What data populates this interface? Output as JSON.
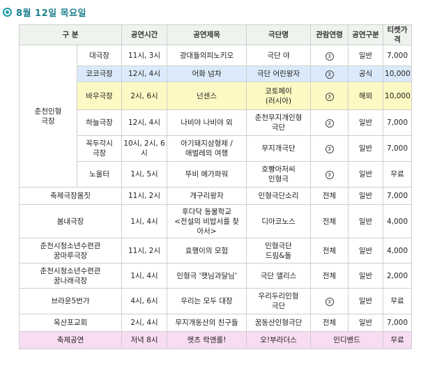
{
  "page": {
    "title": "8월  12일  목요일"
  },
  "table": {
    "headers": [
      "구 분",
      "공연시간",
      "공연제목",
      "극단명",
      "관람연령",
      "공연구분",
      "티켓가격"
    ],
    "group_label": "춘천인형\n극장",
    "age_mark": "3",
    "rows": [
      {
        "venue": "대극장",
        "time": "11시, 3시",
        "show": "광대들의피노키오",
        "troupe": "극단 야",
        "age": "③",
        "type": "일반",
        "price": "7,000"
      },
      {
        "venue": "코코극장",
        "time": "12시, 4시",
        "show": "어화 넘차",
        "troupe": "극단 어린왕자",
        "age": "③",
        "type": "공식",
        "price": "10,000"
      },
      {
        "venue": "바우극장",
        "time": "2시, 6시",
        "show": "넌센스",
        "troupe": "코토페이\n(러시아)",
        "age": "③",
        "type": "해외",
        "price": "10,000"
      },
      {
        "venue": "하늘극장",
        "time": "12시, 4시",
        "show": "나비야 나비야 외",
        "troupe": "춘천무지개인형\n극단",
        "age": "③",
        "type": "일반",
        "price": "7,000"
      },
      {
        "venue": "꼭두각시\n극장",
        "time": "10시, 2시, 6시",
        "show": "아기돼지삼형제 /\n애벌레의 여행",
        "troupe": "무지개극단",
        "age": "③",
        "type": "일반",
        "price": "7,000"
      },
      {
        "venue": "노올터",
        "time": "1시, 5시",
        "show": "뚜비 메가파워",
        "troupe": "호빵아저씨\n인형극",
        "age": "③",
        "type": "일반",
        "price": "무료"
      },
      {
        "venue": "축제극장몸짓",
        "time": "11시, 2시",
        "show": "개구리왕자",
        "troupe": "인형극단소리",
        "age": "전체",
        "type": "일반",
        "price": "7,000"
      },
      {
        "venue": "봄내극장",
        "time": "1시, 4시",
        "show": "후다닥 동물학교\n<전설의 비밥서를 찾\n아서>",
        "troupe": "디아코노스",
        "age": "전체",
        "type": "일반",
        "price": "4,000"
      },
      {
        "venue": "춘천시청소년수련관\n꿈마루극장",
        "time": "11시, 2시",
        "show": "효행이의 모험",
        "troupe": "인형극단\n드림&돌",
        "age": "전체",
        "type": "일반",
        "price": "4,000"
      },
      {
        "venue": "춘천시청소년수련관\n꿈나래극장",
        "time": "1시, 4시",
        "show": "인형극 '햇님과달님'",
        "troupe": "극단 앨리스",
        "age": "전체",
        "type": "일반",
        "price": "2,000"
      },
      {
        "venue": "브라운5번가",
        "time": "4시, 6시",
        "show": "우리는 모두 대장",
        "troupe": "우리두리인형\n극단",
        "age": "③",
        "type": "일반",
        "price": "무료"
      },
      {
        "venue": "옥산포교회",
        "time": "2시, 4시",
        "show": "무지개동산의 친구들",
        "troupe": "꿈동산인형극단",
        "age": "전체",
        "type": "일반",
        "price": "7,000"
      },
      {
        "venue": "축제공연",
        "time": "저녁 8시",
        "show": "렛츠 락앤롤!",
        "troupe": "오!부라더스",
        "age": "인디밴드",
        "type": "",
        "price": "무료"
      }
    ]
  }
}
